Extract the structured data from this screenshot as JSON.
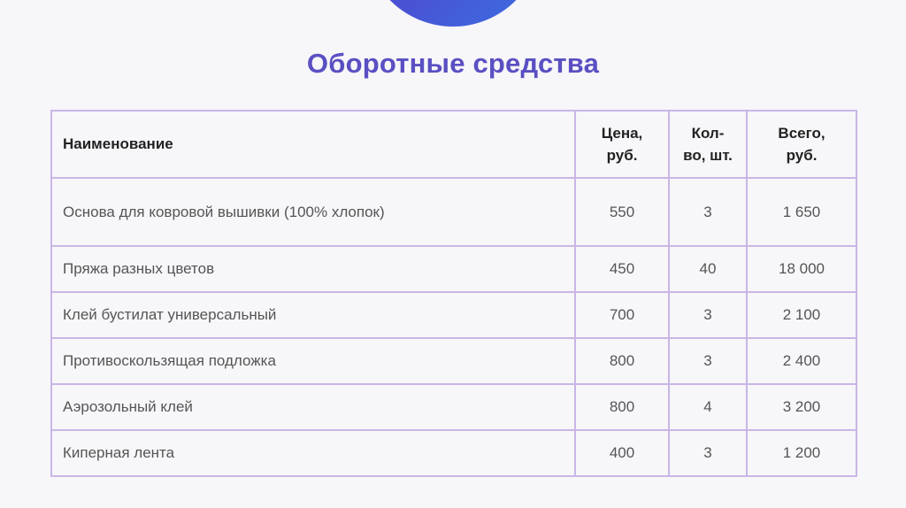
{
  "slide": {
    "title": "Оборотные средства"
  },
  "table": {
    "headers": {
      "name": "Наименование",
      "price": "Цена,\nруб.",
      "qty": "Кол-\nво, шт.",
      "total": "Всего,\nруб."
    },
    "rows": [
      {
        "name": "Основа для ковровой вышивки (100% хлопок)",
        "price": "550",
        "qty": "3",
        "total": "1 650"
      },
      {
        "name": "Пряжа разных цветов",
        "price": "450",
        "qty": "40",
        "total": "18 000"
      },
      {
        "name": "Клей бустилат универсальный",
        "price": "700",
        "qty": "3",
        "total": "2 100"
      },
      {
        "name": "Противоскользящая подложка",
        "price": "800",
        "qty": "3",
        "total": "2 400"
      },
      {
        "name": "Аэрозольный клей",
        "price": "800",
        "qty": "4",
        "total": "3 200"
      },
      {
        "name": "Киперная лента",
        "price": "400",
        "qty": "3",
        "total": "1 200"
      }
    ]
  },
  "colors": {
    "accent": "#5a4fc2",
    "border": "#c9b6e6",
    "circle_gradient_start": "#6a4bd8",
    "circle_gradient_end": "#3a6fe0"
  }
}
